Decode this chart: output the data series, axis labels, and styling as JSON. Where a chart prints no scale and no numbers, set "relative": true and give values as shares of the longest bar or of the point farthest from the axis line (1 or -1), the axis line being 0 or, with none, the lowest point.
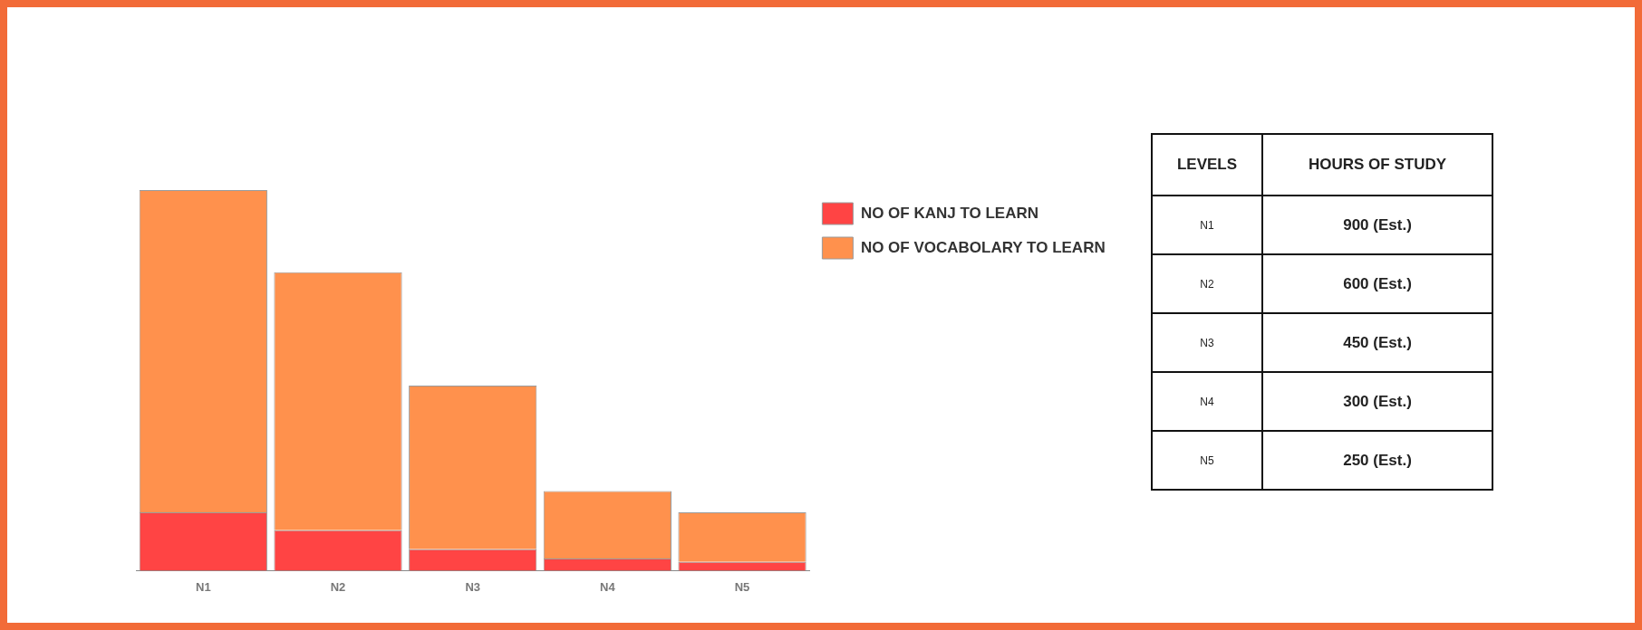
{
  "chart_data": [
    {
      "type": "bar",
      "stacked": true,
      "relative": true,
      "categories": [
        "N1",
        "N2",
        "N3",
        "N4",
        "N5"
      ],
      "legend": "top right",
      "series": [
        {
          "name": "NO OF KANJ TO LEARN",
          "color": "#ff4444",
          "values": [
            0.153,
            0.106,
            0.056,
            0.032,
            0.023
          ]
        },
        {
          "name": "NO OF VOCABOLARY TO LEARN",
          "color": "#ff914d",
          "values": [
            0.847,
            0.678,
            0.43,
            0.177,
            0.13
          ]
        }
      ]
    },
    {
      "type": "other",
      "xlabel": "LEVELS",
      "ylabel": "HOURS OF STUDY",
      "categories": [
        "N1",
        "N2",
        "N3",
        "N4",
        "N5"
      ],
      "value_labels": [
        "900  (Est.)",
        "600  (Est.)",
        "450  (Est.)",
        "300  (Est.)",
        "250  (Est.)"
      ]
    }
  ]
}
